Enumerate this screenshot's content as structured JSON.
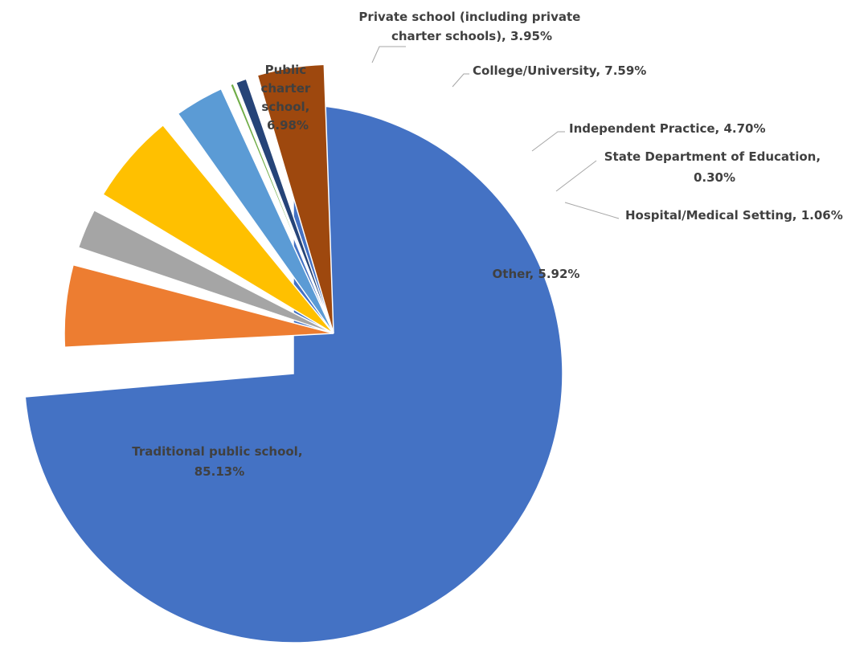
{
  "chart_data": {
    "type": "pie",
    "title": "",
    "start_angle_deg": 0,
    "direction": "clockwise",
    "slices": [
      {
        "label": "Traditional public school,",
        "label_line2": "85.13%",
        "value": 85.13,
        "color": "#4472C4"
      },
      {
        "label": "Public charter school,",
        "label_line2": "6.98%",
        "value": 6.98,
        "color": "#ED7D31"
      },
      {
        "label": "Private school (including private charter schools),",
        "label_line2": "3.95%",
        "value": 3.95,
        "color": "#A5A5A5"
      },
      {
        "label": "College/University,",
        "label_line2": "7.59%",
        "value": 7.59,
        "color": "#FFC000"
      },
      {
        "label": "Independent Practice,",
        "label_line2": "4.70%",
        "value": 4.7,
        "color": "#5B9BD5"
      },
      {
        "label": "State Department of Education,",
        "label_line2": "0.30%",
        "value": 0.3,
        "color": "#70AD47"
      },
      {
        "label": "Hospital/Medical Setting,",
        "label_line2": "1.06%",
        "value": 1.06,
        "color": "#264478"
      },
      {
        "label": "Other,",
        "label_line2": "5.92%",
        "value": 5.92,
        "color": "#9E480E"
      }
    ]
  },
  "labels": {
    "traditional": [
      "Traditional public school,",
      "85.13%"
    ],
    "charter": [
      "Public",
      "charter",
      "school,",
      "6.98%"
    ],
    "private": [
      "Private school (including private",
      "charter schools), 3.95%"
    ],
    "college": [
      "College/University, 7.59%"
    ],
    "independent": [
      "Independent Practice, 4.70%"
    ],
    "state": [
      "State Department of Education,",
      "0.30%"
    ],
    "hospital": [
      "Hospital/Medical Setting, 1.06%"
    ],
    "other": [
      "Other, 5.92%"
    ]
  }
}
